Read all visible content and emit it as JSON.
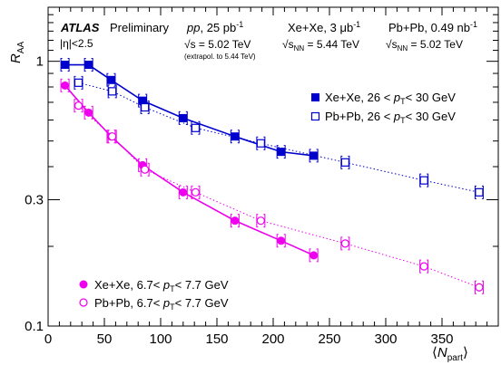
{
  "header": {
    "atlas": "ATLAS",
    "preliminary": "Preliminary",
    "eta_cut": "|η|<2.5",
    "pp_label": "pp",
    "pp_lumi": ", 25 pb",
    "pp_lumi_exp": "-1",
    "pp_sqrt": "√s",
    "pp_energy": " = 5.02 TeV",
    "pp_extrapol": "(extrapol. to 5.44 TeV)",
    "xe_label": "Xe+Xe, 3 μb",
    "xe_lumi_exp": "-1",
    "xe_sqrt": "√s",
    "xe_sqrt_sub": "NN",
    "xe_energy": " = 5.44 TeV",
    "pb_label": "Pb+Pb, 0.49 nb",
    "pb_lumi_exp": "-1",
    "pb_sqrt": "√s",
    "pb_sqrt_sub": "NN",
    "pb_energy": " = 5.02 TeV"
  },
  "chart_data": {
    "type": "scatter",
    "title": "",
    "xlabel": "⟨N_part⟩",
    "ylabel": "R_AA",
    "xlim": [
      0,
      400
    ],
    "ylim": [
      0.1,
      1.6
    ],
    "log_y": true,
    "x_ticks": [
      0,
      50,
      100,
      150,
      200,
      250,
      300,
      350
    ],
    "y_ticks": [
      {
        "value": 0.1,
        "label": "0.1"
      },
      {
        "value": 0.3,
        "label": "0.3"
      },
      {
        "value": 1,
        "label": "1"
      }
    ],
    "legend_placement": "top-right and bottom-left",
    "series": [
      {
        "name": "Xe+Xe, 26 < pT< 30 GeV",
        "color": "#0000cc",
        "marker": "filled-square",
        "line": "solid",
        "x": [
          15,
          36,
          56,
          84,
          120,
          166,
          207,
          236
        ],
        "y": [
          0.97,
          0.97,
          0.85,
          0.71,
          0.61,
          0.52,
          0.455,
          0.44
        ]
      },
      {
        "name": "Pb+Pb, 26 < pT< 30 GeV",
        "color": "#0000cc",
        "marker": "open-square",
        "line": "dotted",
        "x": [
          27,
          57,
          86,
          131,
          189,
          264,
          334,
          383
        ],
        "y": [
          0.83,
          0.77,
          0.67,
          0.56,
          0.49,
          0.415,
          0.355,
          0.32
        ]
      },
      {
        "name": "Xe+Xe, 6.7< pT< 7.7 GeV",
        "color": "#ee00ee",
        "marker": "filled-circle",
        "line": "solid",
        "x": [
          15,
          36,
          56,
          84,
          120,
          166,
          207,
          236
        ],
        "y": [
          0.81,
          0.64,
          0.52,
          0.405,
          0.32,
          0.25,
          0.21,
          0.185
        ]
      },
      {
        "name": "Pb+Pb, 6.7< pT< 7.7 GeV",
        "color": "#ee00ee",
        "marker": "open-circle",
        "line": "dotted",
        "x": [
          27,
          57,
          86,
          131,
          189,
          264,
          334,
          383
        ],
        "y": [
          0.68,
          0.52,
          0.39,
          0.32,
          0.25,
          0.205,
          0.168,
          0.14
        ]
      }
    ]
  },
  "legend_top": [
    {
      "prefix": "Xe+Xe, 26 < ",
      "var": "p",
      "sub": "T",
      "suffix": "< 30 GeV"
    },
    {
      "prefix": "Pb+Pb, 26 < ",
      "var": "p",
      "sub": "T",
      "suffix": "< 30 GeV"
    }
  ],
  "legend_bottom": [
    {
      "prefix": "Xe+Xe, 6.7< ",
      "var": "p",
      "sub": "T",
      "suffix": "< 7.7 GeV"
    },
    {
      "prefix": "Pb+Pb, 6.7< ",
      "var": "p",
      "sub": "T",
      "suffix": "< 7.7 GeV"
    }
  ],
  "axes": {
    "ylabel_main": "R",
    "ylabel_sub": "AA",
    "xlabel_open": "⟨",
    "xlabel_main": "N",
    "xlabel_sub": "part",
    "xlabel_close": "⟩"
  }
}
